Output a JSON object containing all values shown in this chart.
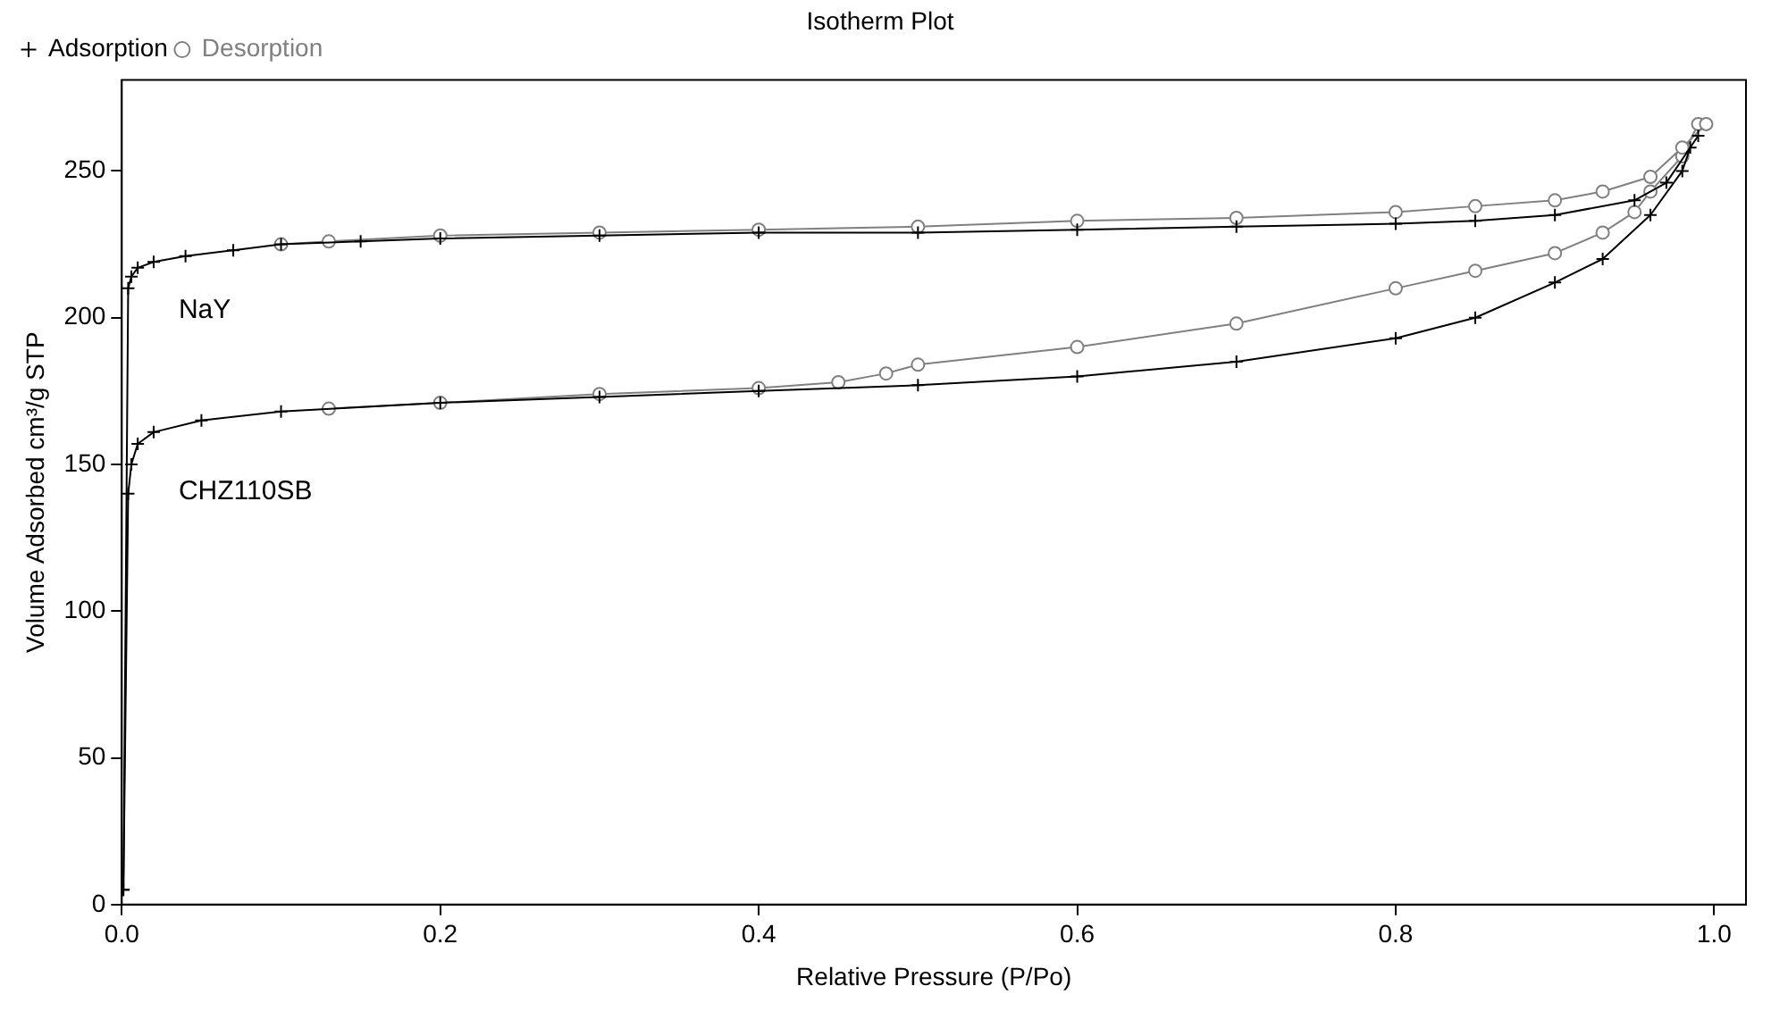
{
  "chart_data": {
    "type": "line",
    "title": "Isotherm Plot",
    "xlabel": "Relative Pressure (P/Po)",
    "ylabel": "Volume Adsorbed cm³/g STP",
    "xlim": [
      0,
      1.02
    ],
    "xticks": [
      {
        "value": 0,
        "label": "0.0"
      },
      0.2,
      0.4,
      0.6,
      0.8,
      {
        "value": 1,
        "label": "1.0"
      }
    ],
    "ylim": [
      0,
      281
    ],
    "yticks": [
      0,
      50,
      100,
      150,
      200,
      250
    ],
    "grid": false,
    "legend": "top left",
    "line_style": "solid",
    "series": [
      {
        "name": "Adsorption",
        "color": "#000000",
        "marker": "cross",
        "x": [
          0.001,
          0.004,
          0.006,
          0.01,
          0.02,
          0.04,
          0.07,
          0.1,
          0.15,
          0.2,
          0.3,
          0.4,
          0.5,
          0.6,
          0.7,
          0.8,
          0.85,
          0.9,
          0.95,
          0.97,
          0.99
        ],
        "values": [
          5,
          210,
          214,
          217,
          219,
          221,
          223,
          225,
          226,
          227,
          228,
          229,
          229,
          230,
          231,
          232,
          233,
          235,
          240,
          246,
          262
        ]
      },
      {
        "name": "Desorption",
        "color": "#808080",
        "marker": "circle",
        "x": [
          0.995,
          0.98,
          0.96,
          0.93,
          0.9,
          0.85,
          0.8,
          0.7,
          0.6,
          0.5,
          0.4,
          0.3,
          0.2,
          0.13,
          0.1
        ],
        "values": [
          266,
          258,
          248,
          243,
          240,
          238,
          236,
          234,
          233,
          231,
          230,
          229,
          228,
          226,
          225
        ]
      },
      {
        "color": "#000000",
        "marker": "cross",
        "x": [
          0.001,
          0.004,
          0.006,
          0.01,
          0.02,
          0.05,
          0.1,
          0.2,
          0.3,
          0.4,
          0.5,
          0.6,
          0.7,
          0.8,
          0.85,
          0.9,
          0.93,
          0.96,
          0.98,
          0.985
        ],
        "values": [
          5,
          140,
          150,
          157,
          161,
          165,
          168,
          171,
          173,
          175,
          177,
          180,
          185,
          193,
          200,
          212,
          220,
          235,
          250,
          258
        ]
      },
      {
        "color": "#808080",
        "marker": "circle",
        "x": [
          0.99,
          0.98,
          0.96,
          0.95,
          0.93,
          0.9,
          0.85,
          0.8,
          0.7,
          0.6,
          0.5,
          0.48,
          0.45,
          0.4,
          0.3,
          0.2,
          0.13
        ],
        "values": [
          266,
          255,
          243,
          236,
          229,
          222,
          216,
          210,
          198,
          190,
          184,
          181,
          178,
          176,
          174,
          171,
          169
        ]
      }
    ],
    "annotations": [
      "NaY",
      "CHZ110SB"
    ]
  }
}
